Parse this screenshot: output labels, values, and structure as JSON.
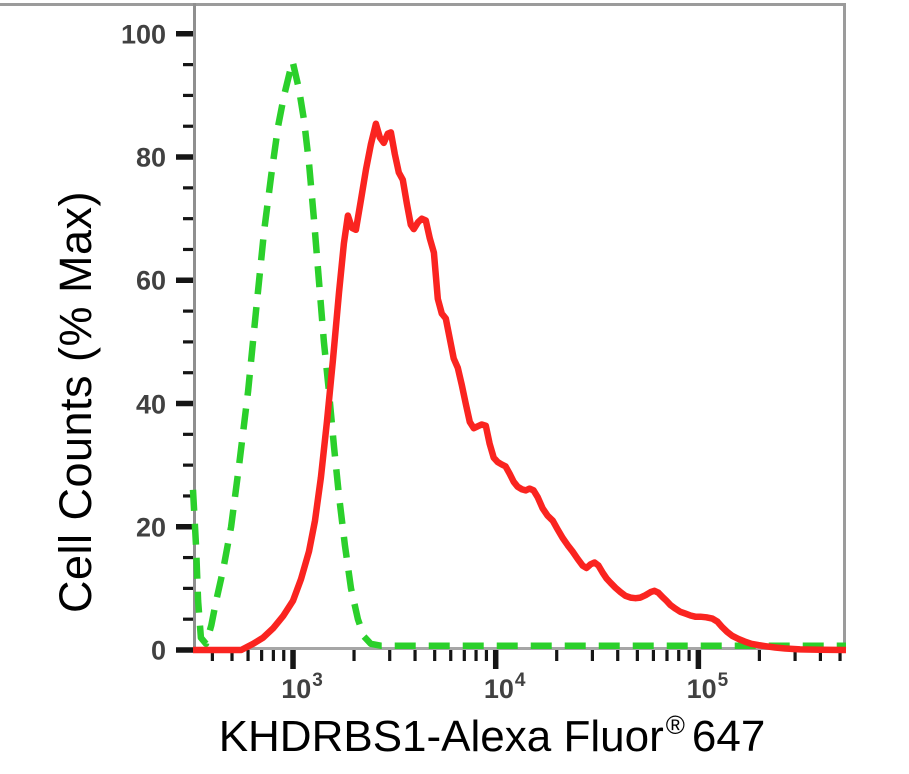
{
  "figure": {
    "y_axis_label": "Cell Counts (% Max)",
    "x_axis_label": {
      "main": "KHDRBS1-Alexa Fluor",
      "registered": "®",
      "suffix": "647"
    }
  },
  "colors": {
    "red_curve": "#fa2420",
    "green_curve": "#2bd02b",
    "frame": "#9b9b9b",
    "ticks": "#151515",
    "tick_labels": "#414141",
    "background": "#ffffff"
  },
  "chart_data": {
    "type": "line",
    "title": "",
    "xlabel": "KHDRBS1-Alexa Fluor® 647",
    "ylabel": "Cell Counts (% Max)",
    "x_scale": "log10",
    "x_range": [
      321,
      535000
    ],
    "y_range": [
      0,
      105
    ],
    "grid": false,
    "legend_position": "none",
    "y_axis": {
      "major_ticks": [
        0,
        20,
        40,
        60,
        80,
        100
      ],
      "tick_labels": [
        "0",
        "20",
        "40",
        "60",
        "80",
        "100"
      ],
      "minor_step": 5
    },
    "x_axis": {
      "major_ticks": [
        {
          "value": 1000,
          "base": "10",
          "exp": "3"
        },
        {
          "value": 10000,
          "base": "10",
          "exp": "4"
        },
        {
          "value": 100000,
          "base": "10",
          "exp": "5"
        }
      ],
      "minor_ticks": [
        400,
        500,
        600,
        700,
        800,
        900,
        2000,
        3000,
        4000,
        5000,
        6000,
        7000,
        8000,
        9000,
        20000,
        30000,
        40000,
        50000,
        60000,
        70000,
        80000,
        90000,
        200000,
        300000,
        400000,
        500000
      ]
    },
    "series": [
      {
        "name": "green-dashed-curve",
        "color": "#2bd02b",
        "style": "dashed",
        "points": [
          [
            321,
            26
          ],
          [
            332,
            17
          ],
          [
            340,
            8
          ],
          [
            351,
            2
          ],
          [
            372,
            1
          ],
          [
            395,
            4
          ],
          [
            418,
            8
          ],
          [
            452,
            13
          ],
          [
            495,
            20
          ],
          [
            542,
            30
          ],
          [
            600,
            42
          ],
          [
            657,
            55
          ],
          [
            720,
            68
          ],
          [
            780,
            77
          ],
          [
            844,
            85
          ],
          [
            904,
            90
          ],
          [
            967,
            94
          ],
          [
            995,
            95.5
          ],
          [
            1070,
            91
          ],
          [
            1133,
            86
          ],
          [
            1199,
            79
          ],
          [
            1268,
            70
          ],
          [
            1342,
            60
          ],
          [
            1421,
            50
          ],
          [
            1503,
            42
          ],
          [
            1592,
            33
          ],
          [
            1686,
            25
          ],
          [
            1803,
            17
          ],
          [
            1932,
            10
          ],
          [
            2089,
            5
          ],
          [
            2238,
            2.2
          ],
          [
            2421,
            1
          ],
          [
            2712,
            0.7
          ],
          [
            4000,
            0.7
          ],
          [
            8000,
            0.7
          ],
          [
            20000,
            0.7
          ],
          [
            60000,
            0.7
          ],
          [
            150000,
            0.7
          ],
          [
            350000,
            0.7
          ],
          [
            535000,
            0.7
          ]
        ]
      },
      {
        "name": "red-solid-curve",
        "color": "#fa2420",
        "style": "solid",
        "points": [
          [
            321,
            0
          ],
          [
            555,
            0
          ],
          [
            636,
            1
          ],
          [
            711,
            2
          ],
          [
            797,
            3.5
          ],
          [
            893,
            5.5
          ],
          [
            1000,
            8
          ],
          [
            1095,
            11.5
          ],
          [
            1199,
            16
          ],
          [
            1283,
            21
          ],
          [
            1373,
            28
          ],
          [
            1469,
            37
          ],
          [
            1573,
            47
          ],
          [
            1686,
            58
          ],
          [
            1783,
            66
          ],
          [
            1866,
            70.5
          ],
          [
            1954,
            68.5
          ],
          [
            2043,
            68.2
          ],
          [
            2162,
            73
          ],
          [
            2291,
            78
          ],
          [
            2421,
            82
          ],
          [
            2564,
            85.4
          ],
          [
            2681,
            83.2
          ],
          [
            2806,
            82.3
          ],
          [
            2936,
            83.8
          ],
          [
            3040,
            84
          ],
          [
            3177,
            80.5
          ],
          [
            3326,
            77.5
          ],
          [
            3481,
            76.3
          ],
          [
            3643,
            72.5
          ],
          [
            3812,
            69
          ],
          [
            3945,
            68.3
          ],
          [
            4130,
            69.4
          ],
          [
            4317,
            70
          ],
          [
            4521,
            69.7
          ],
          [
            4732,
            66.8
          ],
          [
            4955,
            64.5
          ],
          [
            5180,
            57
          ],
          [
            5423,
            54.6
          ],
          [
            5675,
            53.8
          ],
          [
            5935,
            50.5
          ],
          [
            6209,
            47.3
          ],
          [
            6501,
            45.8
          ],
          [
            6800,
            43
          ],
          [
            7112,
            40
          ],
          [
            7447,
            37
          ],
          [
            7798,
            36
          ],
          [
            8147,
            36.3
          ],
          [
            8531,
            36.6
          ],
          [
            8933,
            36.4
          ],
          [
            9333,
            33.5
          ],
          [
            9772,
            31.2
          ],
          [
            10230,
            30.5
          ],
          [
            10720,
            30.1
          ],
          [
            11190,
            29.8
          ],
          [
            11720,
            28.6
          ],
          [
            12270,
            27.3
          ],
          [
            12820,
            26.5
          ],
          [
            13430,
            26.1
          ],
          [
            14060,
            25.9
          ],
          [
            14690,
            26.2
          ],
          [
            15380,
            25.9
          ],
          [
            16110,
            24.8
          ],
          [
            17040,
            23
          ],
          [
            18030,
            21.8
          ],
          [
            19100,
            21
          ],
          [
            20180,
            19.6
          ],
          [
            21380,
            18.2
          ],
          [
            22650,
            17
          ],
          [
            23930,
            16
          ],
          [
            25350,
            14.8
          ],
          [
            26850,
            13.7
          ],
          [
            28050,
            13.3
          ],
          [
            29380,
            13.9
          ],
          [
            30760,
            14.2
          ],
          [
            32140,
            13.7
          ],
          [
            33650,
            12.6
          ],
          [
            35240,
            11.6
          ],
          [
            36900,
            10.9
          ],
          [
            38990,
            10.1
          ],
          [
            41290,
            9.4
          ],
          [
            43650,
            8.8
          ],
          [
            46240,
            8.5
          ],
          [
            48980,
            8.4
          ],
          [
            51760,
            8.5
          ],
          [
            54820,
            8.9
          ],
          [
            58080,
            9.4
          ],
          [
            60670,
            9.6
          ],
          [
            63530,
            9.3
          ],
          [
            66530,
            8.6
          ],
          [
            69500,
            8
          ],
          [
            72780,
            7.3
          ],
          [
            77090,
            6.7
          ],
          [
            81470,
            6.2
          ],
          [
            86300,
            5.9
          ],
          [
            91410,
            5.6
          ],
          [
            96610,
            5.4
          ],
          [
            102300,
            5.4
          ],
          [
            109400,
            5.3
          ],
          [
            117200,
            5.1
          ],
          [
            124200,
            4.6
          ],
          [
            131200,
            3.7
          ],
          [
            139000,
            2.9
          ],
          [
            146900,
            2.3
          ],
          [
            157400,
            1.8
          ],
          [
            168700,
            1.4
          ],
          [
            182400,
            1.0
          ],
          [
            197700,
            0.8
          ],
          [
            216300,
            0.6
          ],
          [
            239300,
            0.4
          ],
          [
            268500,
            0.25
          ],
          [
            317700,
            0.1
          ],
          [
            398900,
            0.05
          ],
          [
            535000,
            0
          ]
        ]
      }
    ]
  }
}
